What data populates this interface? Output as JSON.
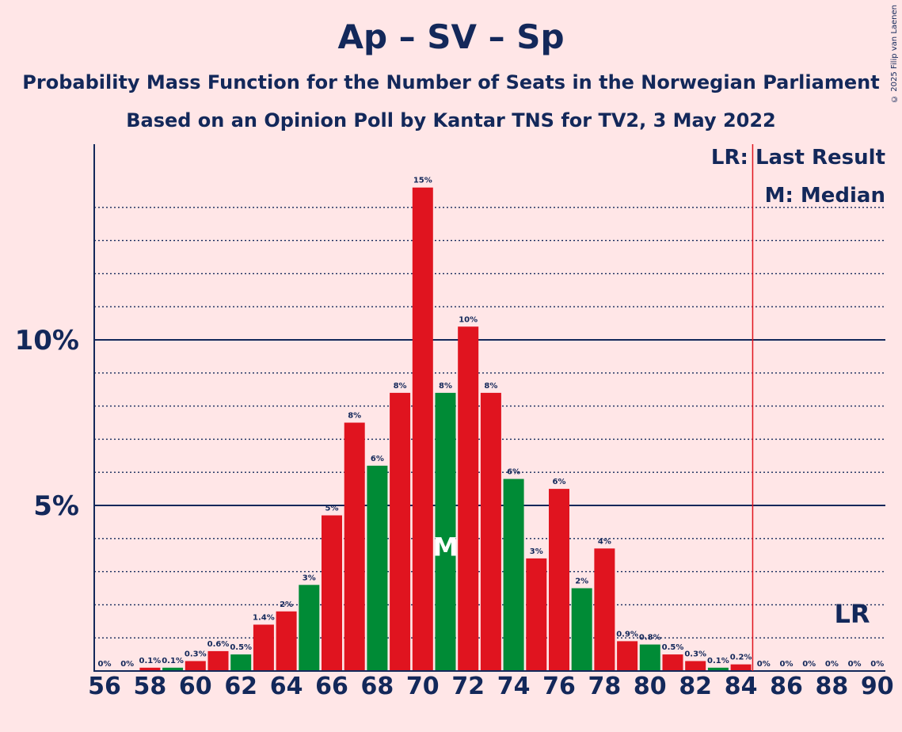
{
  "title": "Ap – SV – Sp",
  "subtitle": "Probability Mass Function for the Number of Seats in the Norwegian Parliament",
  "subtitle2": "Based on an Opinion Poll by Kantar TNS for TV2, 3 May 2022",
  "copyright": "© 2025 Filip van Laenen",
  "legend": {
    "last_result": "LR: Last Result",
    "median": "M: Median"
  },
  "markers": {
    "median_label": "M",
    "median_seat": 71,
    "last_result_label": "LR",
    "last_result_seat": 85
  },
  "colors": {
    "red": "#E0141F",
    "green": "#008B36",
    "navy": "#13285A",
    "background": "#FFE6E7",
    "lr_line": "#E0141F"
  },
  "chart_data": {
    "type": "bar",
    "x": [
      56,
      57,
      58,
      59,
      60,
      61,
      62,
      63,
      64,
      65,
      66,
      67,
      68,
      69,
      70,
      71,
      72,
      73,
      74,
      75,
      76,
      77,
      78,
      79,
      80,
      81,
      82,
      83,
      84,
      85,
      86,
      87,
      88,
      89,
      90
    ],
    "values": [
      0,
      0,
      0.1,
      0.1,
      0.3,
      0.6,
      0.5,
      1.4,
      1.8,
      2.6,
      4.7,
      7.5,
      6.2,
      8.4,
      14.6,
      8.4,
      10.4,
      8.4,
      5.8,
      3.4,
      5.5,
      2.5,
      3.7,
      0.9,
      0.8,
      0.5,
      0.3,
      0.1,
      0.2,
      0,
      0,
      0,
      0,
      0,
      0
    ],
    "data_labels": [
      "0%",
      "0%",
      "0.1%",
      "0.1%",
      "0.3%",
      "0.6%",
      "0.5%",
      "1.4%",
      "2%",
      "3%",
      "5%",
      "8%",
      "6%",
      "8%",
      "15%",
      "8%",
      "10%",
      "8%",
      "6%",
      "3%",
      "6%",
      "2%",
      "4%",
      "0.9%",
      "0.8%",
      "0.5%",
      "0.3%",
      "0.1%",
      "0.2%",
      "0%",
      "0%",
      "0%",
      "0%",
      "0%",
      "0%"
    ],
    "bar_colors": [
      "red",
      "red",
      "red",
      "green",
      "red",
      "red",
      "green",
      "red",
      "red",
      "green",
      "red",
      "red",
      "green",
      "red",
      "red",
      "green",
      "red",
      "red",
      "green",
      "red",
      "red",
      "green",
      "red",
      "red",
      "green",
      "red",
      "red",
      "green",
      "red",
      "red",
      "red",
      "red",
      "red",
      "red",
      "red"
    ],
    "x_tick_labels": [
      "56",
      "58",
      "60",
      "62",
      "64",
      "66",
      "68",
      "70",
      "72",
      "74",
      "76",
      "78",
      "80",
      "82",
      "84",
      "86",
      "88",
      "90"
    ],
    "y_tick_labels": [
      {
        "value": 5,
        "label": "5%"
      },
      {
        "value": 10,
        "label": "10%"
      }
    ],
    "ylim": [
      0,
      16
    ],
    "xlabel": "",
    "ylabel": "",
    "grid": true,
    "legend_position": "top-right"
  }
}
